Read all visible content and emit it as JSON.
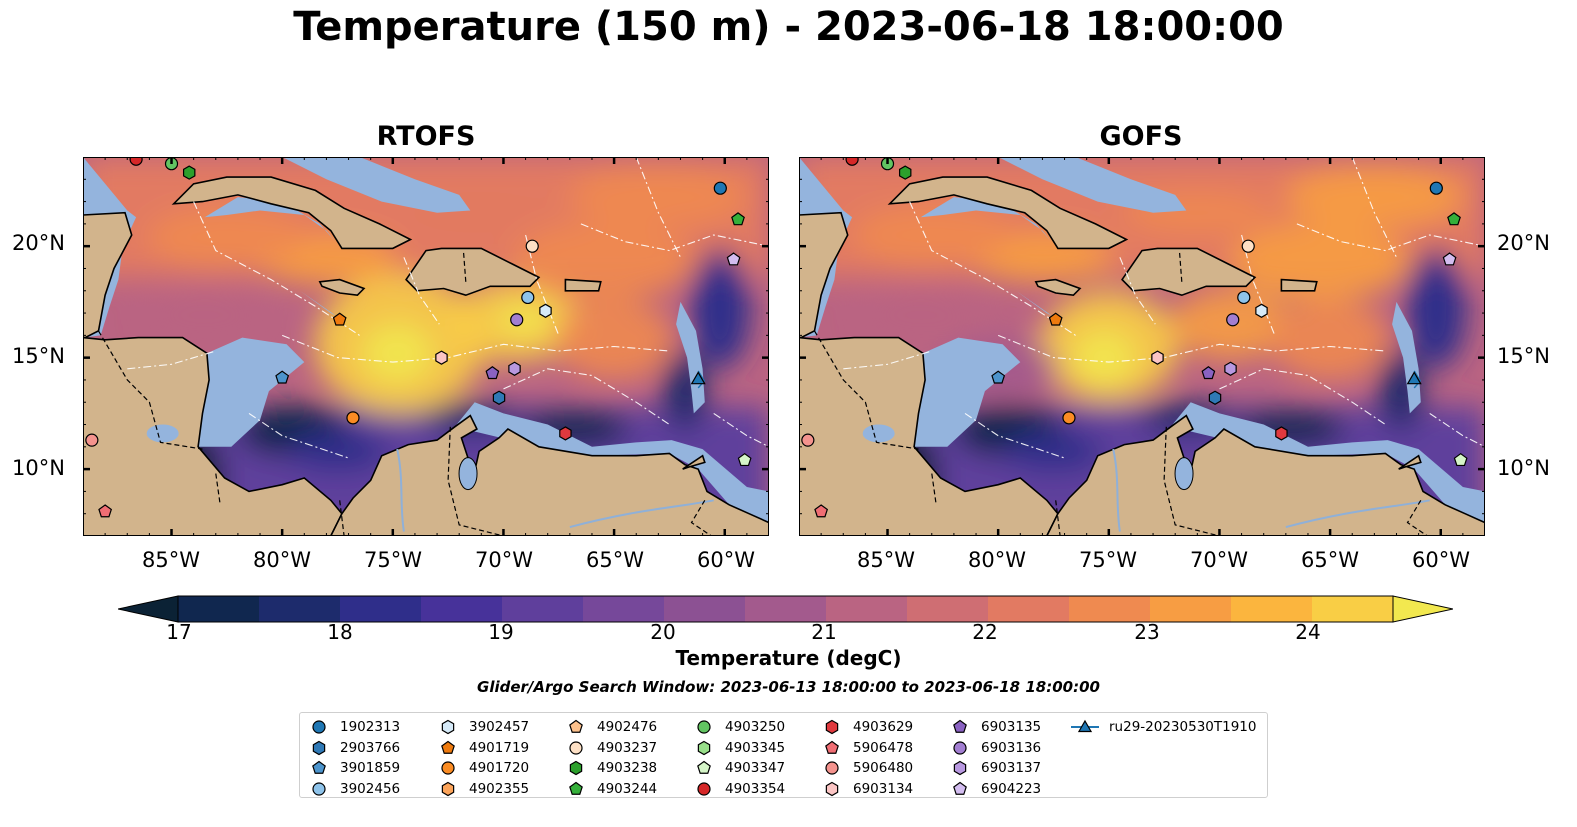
{
  "title": "Temperature (150 m) - 2023-06-18 18:00:00",
  "panels": [
    {
      "title": "RTOFS"
    },
    {
      "title": "GOFS"
    }
  ],
  "axes": {
    "lon_ticks": [
      "85°W",
      "80°W",
      "75°W",
      "70°W",
      "65°W",
      "60°W"
    ],
    "lat_ticks": [
      "20°N",
      "15°N",
      "10°N"
    ]
  },
  "colorbar": {
    "label": "Temperature (degC)",
    "ticks": [
      "17",
      "18",
      "19",
      "20",
      "21",
      "22",
      "23",
      "24"
    ],
    "min": 17,
    "max": 24.5,
    "step": 0.5,
    "colors": [
      "#0b2235",
      "#10274f",
      "#1d2b6c",
      "#2f2e8a",
      "#47329a",
      "#5f3f9c",
      "#76489a",
      "#8c5193",
      "#a35a8d",
      "#ba6482",
      "#cf6e73",
      "#e27a62",
      "#ef8a50",
      "#f79d43",
      "#fbb53e",
      "#f9ce45",
      "#f2e84f"
    ]
  },
  "search_window": "Glider/Argo Search Window: 2023-06-13 18:00:00 to 2023-06-18 18:00:00",
  "legend": [
    {
      "id": "1902313",
      "marker": "circle",
      "color": "#1f77b4"
    },
    {
      "id": "2903766",
      "marker": "hexagon",
      "color": "#2f79b6"
    },
    {
      "id": "3901859",
      "marker": "pentagon",
      "color": "#4c94cc"
    },
    {
      "id": "3902456",
      "marker": "circle",
      "color": "#8ec3ea"
    },
    {
      "id": "3902457",
      "marker": "hexagon",
      "color": "#d6eaf8"
    },
    {
      "id": "4901719",
      "marker": "pentagon",
      "color": "#ee7a0e"
    },
    {
      "id": "4901720",
      "marker": "circle",
      "color": "#fb8c23"
    },
    {
      "id": "4902355",
      "marker": "hexagon",
      "color": "#fca45a"
    },
    {
      "id": "4902476",
      "marker": "pentagon",
      "color": "#fdc18c"
    },
    {
      "id": "4903237",
      "marker": "circle",
      "color": "#fde0c5"
    },
    {
      "id": "4903238",
      "marker": "hexagon",
      "color": "#2ca02c"
    },
    {
      "id": "4903244",
      "marker": "pentagon",
      "color": "#35b03a"
    },
    {
      "id": "4903250",
      "marker": "circle",
      "color": "#62c462"
    },
    {
      "id": "4903345",
      "marker": "hexagon",
      "color": "#98df8a"
    },
    {
      "id": "4903347",
      "marker": "pentagon",
      "color": "#d5f5c8"
    },
    {
      "id": "4903354",
      "marker": "circle",
      "color": "#d62728"
    },
    {
      "id": "4903629",
      "marker": "hexagon",
      "color": "#e0393e"
    },
    {
      "id": "5906478",
      "marker": "pentagon",
      "color": "#f06e74"
    },
    {
      "id": "5906480",
      "marker": "circle",
      "color": "#f4938e"
    },
    {
      "id": "6903134",
      "marker": "hexagon",
      "color": "#fbc5c4"
    },
    {
      "id": "6903135",
      "marker": "pentagon",
      "color": "#8a62c2"
    },
    {
      "id": "6903136",
      "marker": "circle",
      "color": "#a27ed1"
    },
    {
      "id": "6903137",
      "marker": "hexagon",
      "color": "#b898e0"
    },
    {
      "id": "6904223",
      "marker": "pentagon",
      "color": "#d3bdf0"
    },
    {
      "id": "ru29-20230530T1910",
      "marker": "triangle-line",
      "color": "#1f77b4"
    }
  ],
  "map_extent": {
    "lon": [
      -89,
      -58
    ],
    "lat": [
      7,
      24
    ]
  },
  "platforms": [
    {
      "id": "1902313",
      "lon": -60.2,
      "lat": 22.6
    },
    {
      "id": "4903244",
      "lon": -59.4,
      "lat": 21.2
    },
    {
      "id": "4903237",
      "lon": -68.7,
      "lat": 20.0
    },
    {
      "id": "6904223",
      "lon": -59.6,
      "lat": 19.4
    },
    {
      "id": "3902456",
      "lon": -68.9,
      "lat": 17.7
    },
    {
      "id": "3902457",
      "lon": -68.1,
      "lat": 17.1
    },
    {
      "id": "6903136",
      "lon": -69.4,
      "lat": 16.7
    },
    {
      "id": "4901719",
      "lon": -77.4,
      "lat": 16.7
    },
    {
      "id": "6903134",
      "lon": -72.8,
      "lat": 15.0
    },
    {
      "id": "6903135",
      "lon": -70.5,
      "lat": 14.3
    },
    {
      "id": "6903137",
      "lon": -69.5,
      "lat": 14.5
    },
    {
      "id": "3901859",
      "lon": -80.0,
      "lat": 14.1
    },
    {
      "id": "2903766",
      "lon": -70.2,
      "lat": 13.2
    },
    {
      "id": "4901720",
      "lon": -76.8,
      "lat": 12.3
    },
    {
      "id": "4903629",
      "lon": -67.2,
      "lat": 11.6
    },
    {
      "id": "5906480",
      "lon": -88.6,
      "lat": 11.3
    },
    {
      "id": "4903347",
      "lon": -59.1,
      "lat": 10.4
    },
    {
      "id": "5906478",
      "lon": -88.0,
      "lat": 8.1
    },
    {
      "id": "4903354",
      "lon": -86.6,
      "lat": 23.9
    },
    {
      "id": "4903250",
      "lon": -85.0,
      "lat": 23.7
    },
    {
      "id": "4903238",
      "lon": -84.2,
      "lat": 23.3
    },
    {
      "id": "ru29-20230530T1910",
      "lon": -61.2,
      "lat": 14.0
    }
  ]
}
